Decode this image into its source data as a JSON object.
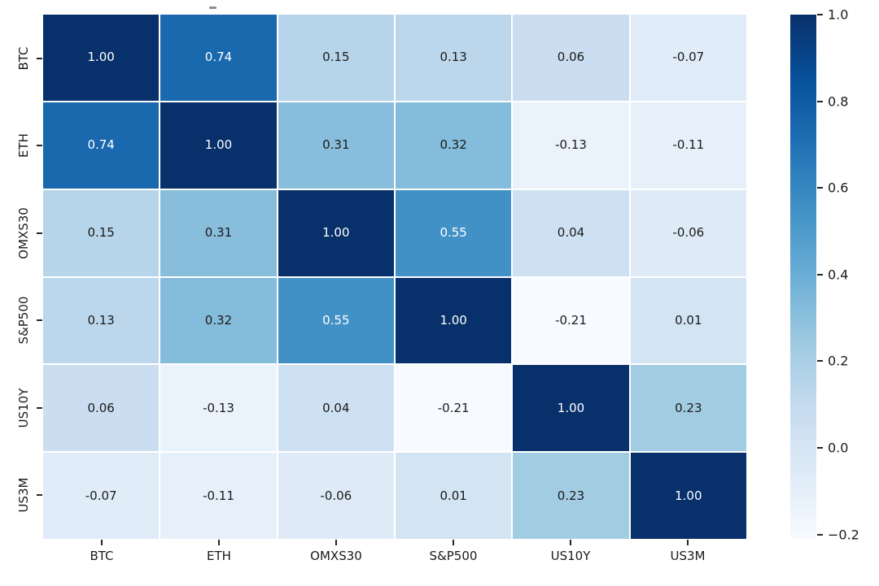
{
  "chart_data": {
    "type": "heatmap",
    "title": "",
    "categories": [
      "BTC",
      "ETH",
      "OMXS30",
      "S&P500",
      "US10Y",
      "US3M"
    ],
    "matrix": [
      [
        1.0,
        0.74,
        0.15,
        0.13,
        0.06,
        -0.07
      ],
      [
        0.74,
        1.0,
        0.31,
        0.32,
        -0.13,
        -0.11
      ],
      [
        0.15,
        0.31,
        1.0,
        0.55,
        0.04,
        -0.06
      ],
      [
        0.13,
        0.32,
        0.55,
        1.0,
        -0.21,
        0.01
      ],
      [
        0.06,
        -0.13,
        0.04,
        -0.21,
        1.0,
        0.23
      ],
      [
        -0.07,
        -0.11,
        -0.06,
        0.01,
        0.23,
        1.0
      ]
    ],
    "annotation_decimals": 2,
    "vmin": -0.21,
    "vmax": 1.0,
    "colormap": "Blues",
    "colormap_stops": [
      "#f7fbff",
      "#deebf7",
      "#c6dbef",
      "#9ecae1",
      "#6baed6",
      "#4292c6",
      "#2171b5",
      "#08519c",
      "#08306b"
    ],
    "grid_line_color": "#ffffff",
    "cell_text_dark": "#1a1a1a",
    "cell_text_light": "#ffffff",
    "grid": false,
    "legend_position": "right-colorbar",
    "colorbar": {
      "tick_values": [
        1.0,
        0.8,
        0.6,
        0.4,
        0.2,
        0.0,
        -0.2
      ],
      "tick_labels": [
        "1.0",
        "0.8",
        "0.6",
        "0.4",
        "0.2",
        "0.0",
        "−0.2"
      ]
    }
  }
}
